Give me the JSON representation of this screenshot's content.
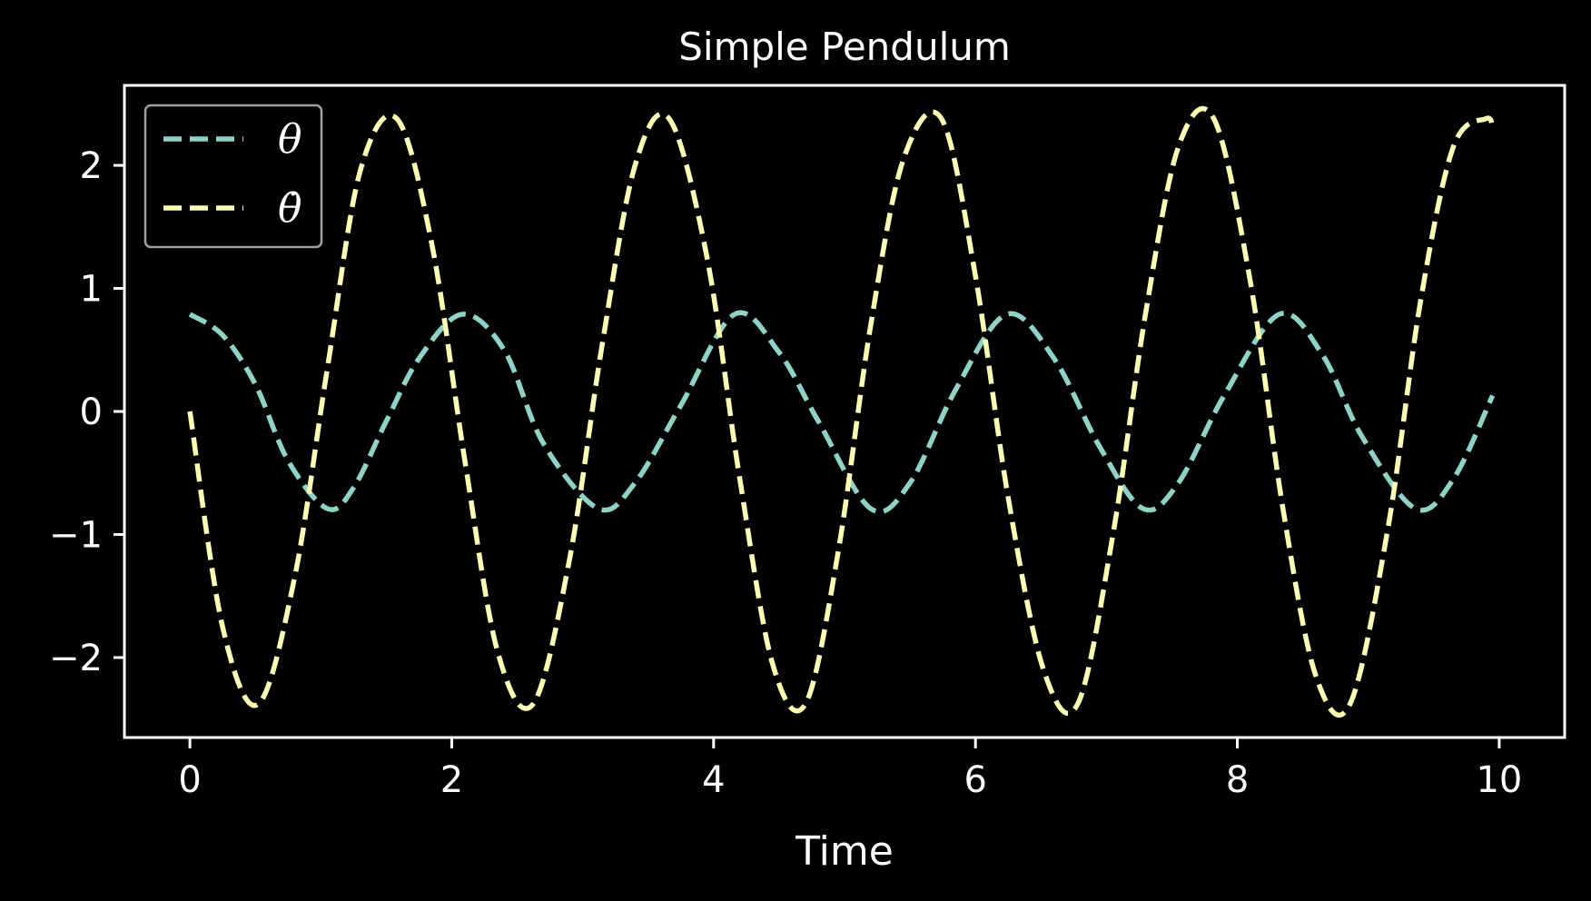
{
  "chart_data": {
    "type": "line",
    "title": "Simple Pendulum",
    "xlabel": "Time",
    "ylabel": "",
    "xlim": [
      -0.5,
      10.5
    ],
    "ylim": [
      -2.65,
      2.65
    ],
    "xticks": [
      0,
      2,
      4,
      6,
      8,
      10
    ],
    "xtick_labels": [
      "0",
      "2",
      "4",
      "6",
      "8",
      "10"
    ],
    "yticks": [
      2,
      1,
      0,
      -1,
      -2
    ],
    "ytick_labels": [
      "2",
      "1",
      "0",
      "−1",
      "−2"
    ],
    "grid": false,
    "legend_position": "top-left",
    "background": "#000000",
    "series": [
      {
        "name": "θ",
        "color": "#8dd3c7",
        "style": "dashed",
        "x": [
          0.0,
          0.25,
          0.5,
          0.75,
          1.05,
          1.25,
          1.5,
          1.75,
          2.08,
          2.4,
          2.7,
          3.12,
          3.4,
          3.75,
          4.16,
          4.5,
          4.8,
          5.2,
          5.5,
          5.85,
          6.24,
          6.6,
          6.95,
          7.28,
          7.55,
          7.9,
          8.32,
          8.65,
          8.95,
          9.36,
          9.65,
          9.95
        ],
        "y": [
          0.79,
          0.62,
          0.22,
          -0.4,
          -0.79,
          -0.62,
          -0.08,
          0.43,
          0.79,
          0.5,
          -0.26,
          -0.79,
          -0.58,
          0.05,
          0.79,
          0.48,
          -0.08,
          -0.79,
          -0.58,
          0.18,
          0.79,
          0.43,
          -0.29,
          -0.79,
          -0.58,
          0.13,
          0.79,
          0.46,
          -0.2,
          -0.79,
          -0.55,
          0.13
        ]
      },
      {
        "name": "θ̇",
        "color": "#ffffb3",
        "style": "dashed",
        "x": [
          0.0,
          0.25,
          0.52,
          0.8,
          1.05,
          1.3,
          1.58,
          1.85,
          2.1,
          2.35,
          2.62,
          2.9,
          3.15,
          3.4,
          3.66,
          3.95,
          4.2,
          4.45,
          4.7,
          4.95,
          5.2,
          5.45,
          5.74,
          6.0,
          6.25,
          6.52,
          6.78,
          7.05,
          7.3,
          7.55,
          7.82,
          8.1,
          8.35,
          8.6,
          8.86,
          9.15,
          9.4,
          9.65,
          9.9,
          9.95
        ],
        "y": [
          0.0,
          -1.75,
          -2.38,
          -1.35,
          0.35,
          1.95,
          2.38,
          1.35,
          -0.4,
          -1.95,
          -2.38,
          -1.2,
          0.55,
          2.0,
          2.38,
          1.25,
          -0.55,
          -2.05,
          -2.38,
          -1.15,
          0.7,
          2.05,
          2.38,
          1.1,
          -0.7,
          -2.1,
          -2.38,
          -1.0,
          0.8,
          2.15,
          2.38,
          1.05,
          -0.8,
          -2.15,
          -2.38,
          -0.95,
          0.9,
          2.15,
          2.38,
          2.3
        ]
      }
    ]
  }
}
